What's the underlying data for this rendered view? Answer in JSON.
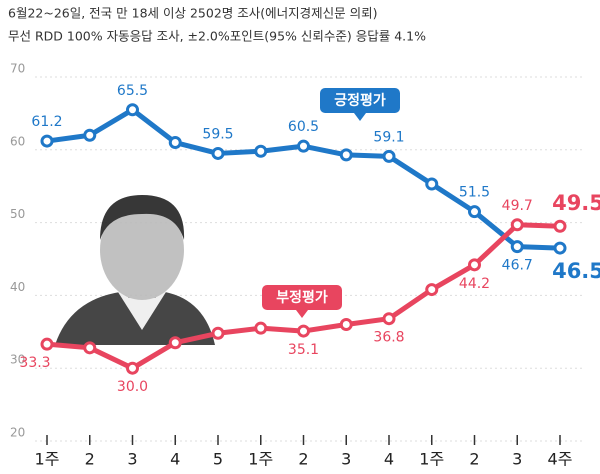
{
  "chart_data": {
    "type": "line",
    "title": "6월22~26일, 전국 만 18세 이상 2502명 조사(에너지경제신문 의뢰)",
    "subtitle": "무선 RDD 100% 자동응답 조사, ±2.0%포인트(95% 신뢰수준) 응답률 4.1%",
    "categories": [
      "1주",
      "2",
      "3",
      "4",
      "5",
      "1주",
      "2",
      "3",
      "4",
      "1주",
      "2",
      "3",
      "4주"
    ],
    "ylim": [
      20,
      70
    ],
    "yticks": [
      20,
      30,
      40,
      50,
      60,
      70
    ],
    "grid": true,
    "series": [
      {
        "name": "긍정평가",
        "color": "#1f78c8",
        "values": [
          61.2,
          62.0,
          65.5,
          61.0,
          59.5,
          59.8,
          60.5,
          59.3,
          59.1,
          55.3,
          51.5,
          46.7,
          46.5
        ],
        "value_labels": [
          "61.2",
          null,
          "65.5",
          null,
          "59.5",
          null,
          "60.5",
          null,
          "59.1",
          null,
          "51.5",
          "46.7",
          "46.5"
        ]
      },
      {
        "name": "부정평가",
        "color": "#e8455f",
        "values": [
          33.3,
          32.8,
          30.0,
          33.5,
          34.8,
          35.5,
          35.1,
          36.0,
          36.8,
          40.8,
          44.2,
          49.7,
          49.5
        ],
        "value_labels": [
          "33.3",
          null,
          "30.0",
          null,
          null,
          null,
          "35.1",
          null,
          "36.8",
          null,
          "44.2",
          "49.7",
          "49.5"
        ]
      }
    ]
  }
}
